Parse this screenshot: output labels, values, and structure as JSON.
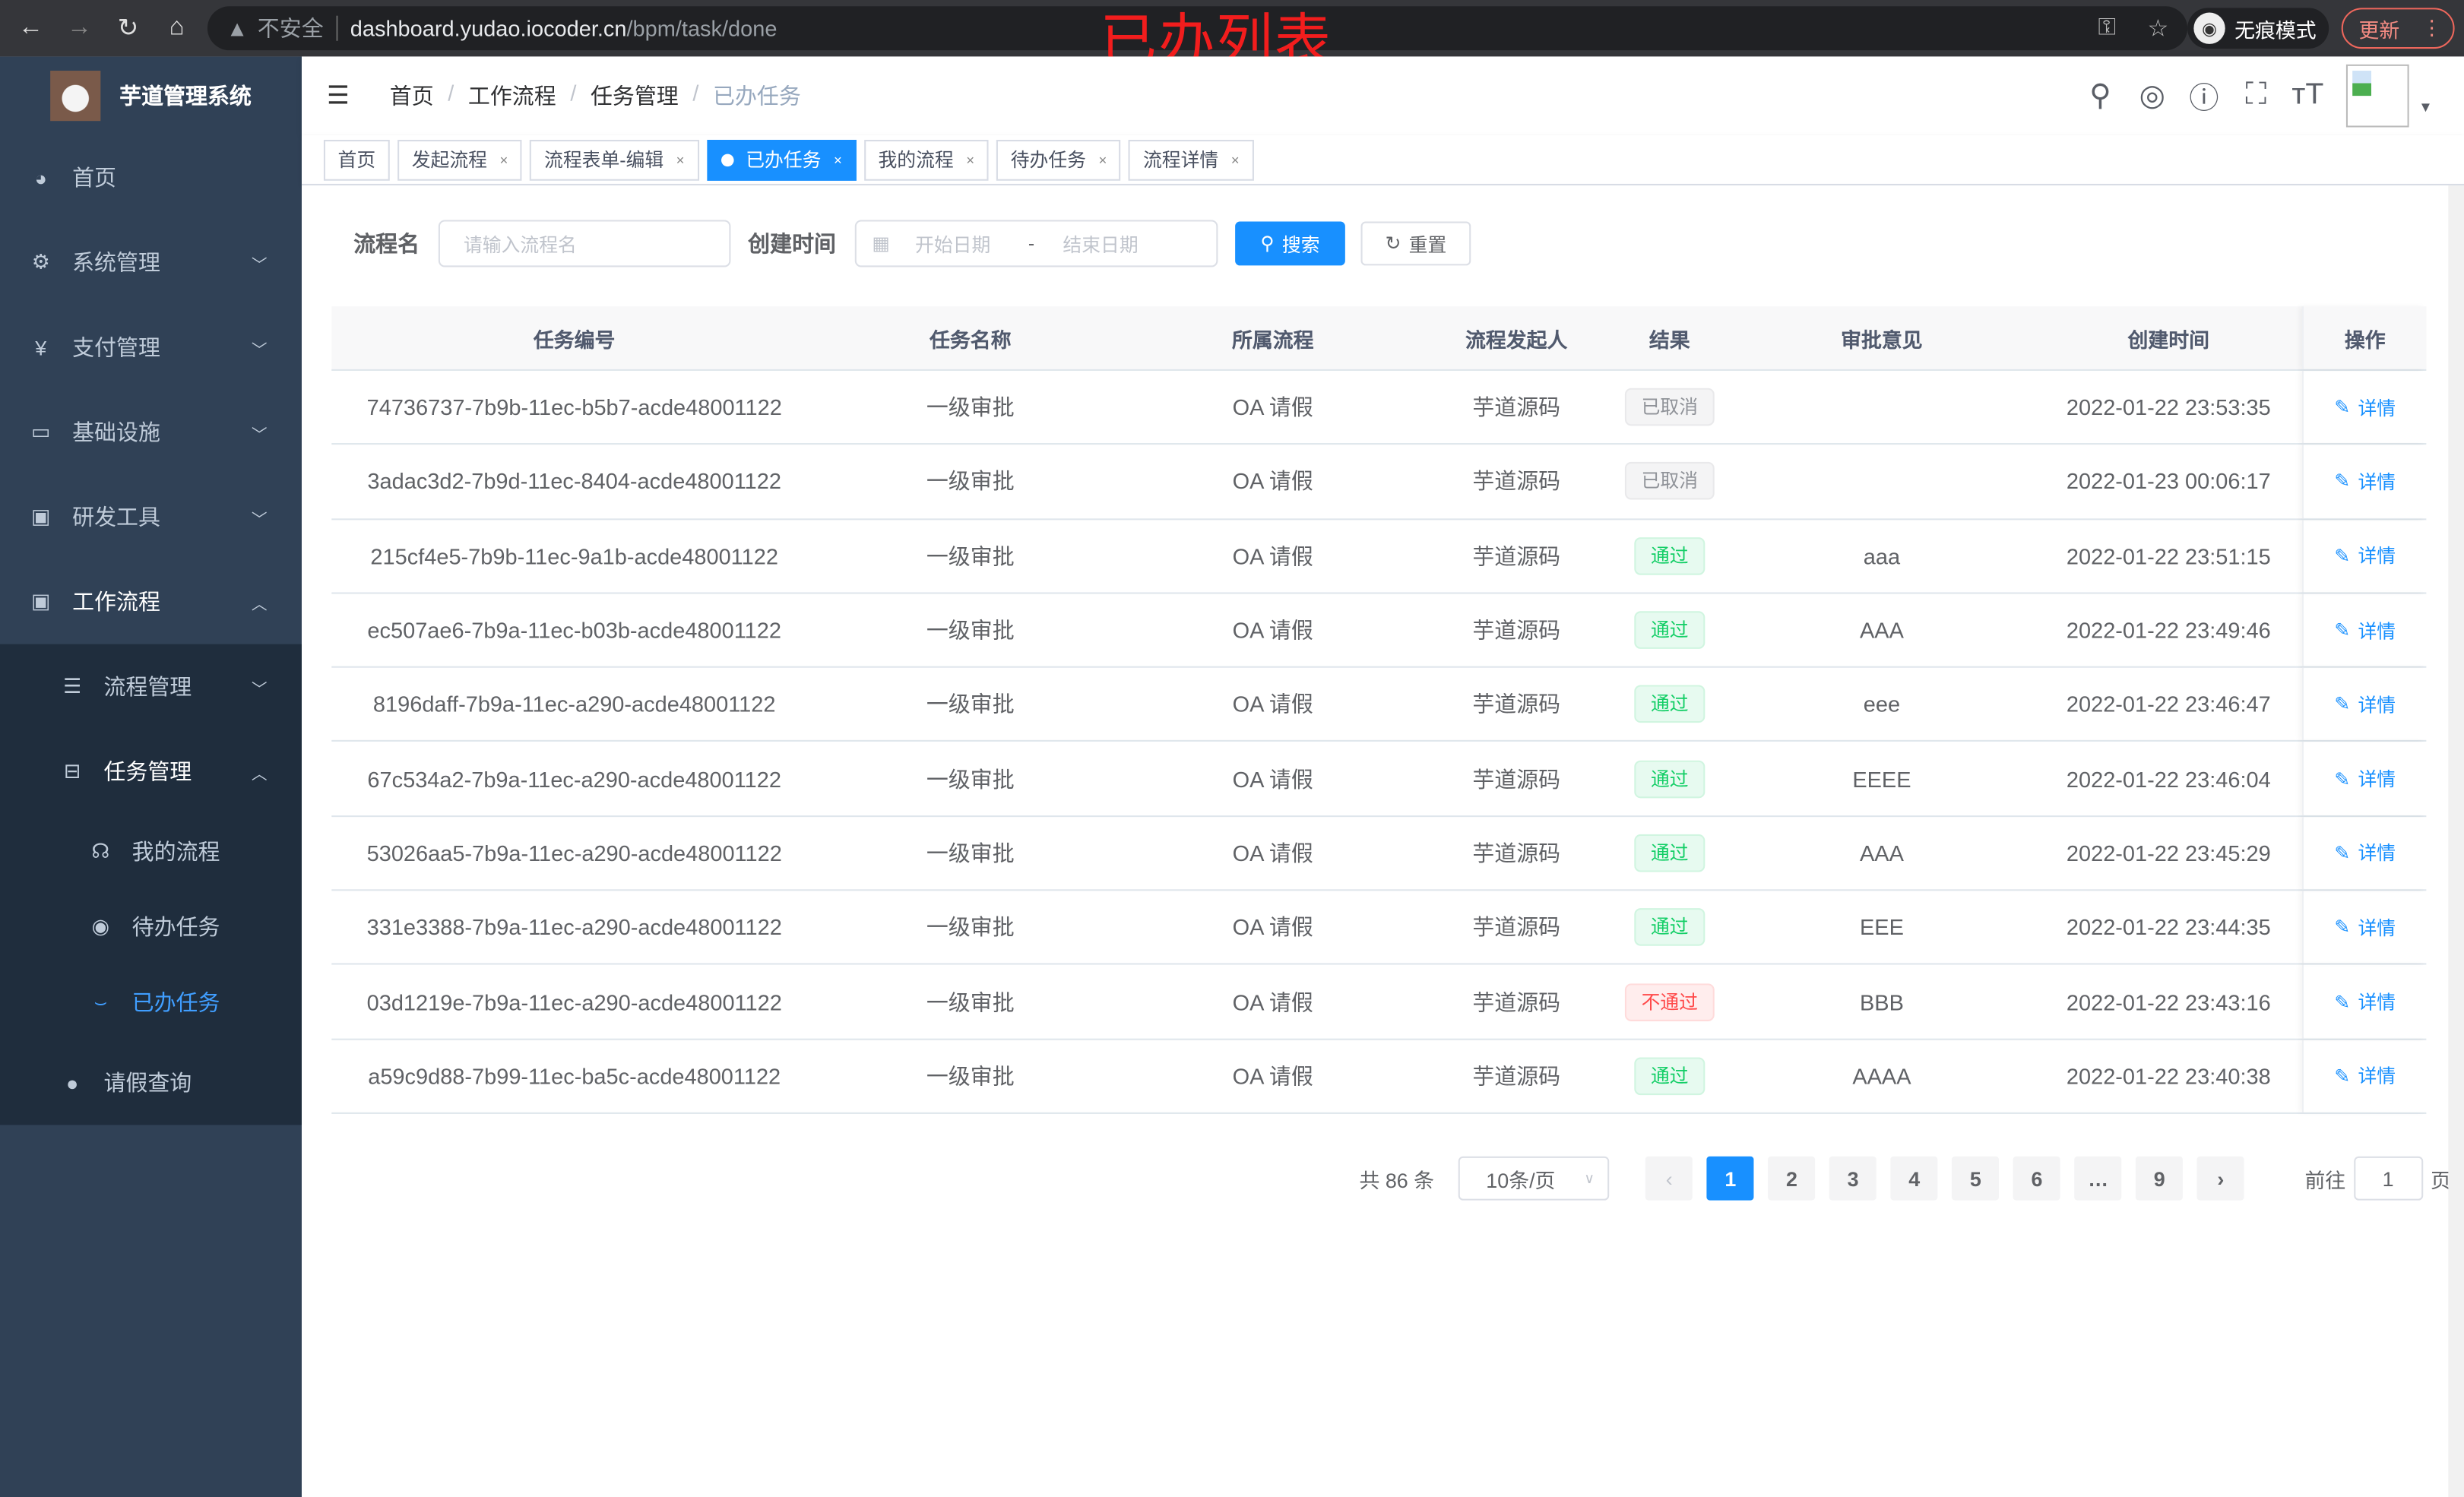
{
  "browser": {
    "security": "不安全",
    "host": "dashboard.yudao.iocoder.cn",
    "path": "/bpm/task/done",
    "incognito": "无痕模式",
    "update": "更新"
  },
  "annotation": "已办列表",
  "sidebar": {
    "title": "芋道管理系统",
    "items": [
      {
        "label": "首页",
        "icon": "dashboard-icon"
      },
      {
        "label": "系统管理",
        "icon": "gear-icon"
      },
      {
        "label": "支付管理",
        "icon": "yen-icon"
      },
      {
        "label": "基础设施",
        "icon": "monitor-icon"
      },
      {
        "label": "研发工具",
        "icon": "toolbox-icon"
      },
      {
        "label": "工作流程",
        "icon": "toolbox-icon"
      }
    ],
    "sub": [
      {
        "label": "流程管理"
      },
      {
        "label": "任务管理"
      }
    ],
    "sub2": [
      {
        "label": "我的流程"
      },
      {
        "label": "待办任务"
      },
      {
        "label": "已办任务"
      }
    ],
    "leave": "请假查询"
  },
  "breadcrumb": [
    "首页",
    "工作流程",
    "任务管理",
    "已办任务"
  ],
  "tags": [
    "首页",
    "发起流程",
    "流程表单-编辑",
    "已办任务",
    "我的流程",
    "待办任务",
    "流程详情"
  ],
  "form": {
    "name_label": "流程名",
    "name_placeholder": "请输入流程名",
    "time_label": "创建时间",
    "start_placeholder": "开始日期",
    "sep": "-",
    "end_placeholder": "结束日期",
    "search": "搜索",
    "reset": "重置"
  },
  "table": {
    "headers": [
      "任务编号",
      "任务名称",
      "所属流程",
      "流程发起人",
      "结果",
      "审批意见",
      "创建时间",
      "操作"
    ],
    "action": "详情",
    "rows": [
      {
        "id": "74736737-7b9b-11ec-b5b7-acde48001122",
        "name": "一级审批",
        "process": "OA 请假",
        "starter": "芋道源码",
        "result": "已取消",
        "status": "cancel",
        "comment": "",
        "time": "2022-01-22 23:53:35"
      },
      {
        "id": "3adac3d2-7b9d-11ec-8404-acde48001122",
        "name": "一级审批",
        "process": "OA 请假",
        "starter": "芋道源码",
        "result": "已取消",
        "status": "cancel",
        "comment": "",
        "time": "2022-01-23 00:06:17"
      },
      {
        "id": "215cf4e5-7b9b-11ec-9a1b-acde48001122",
        "name": "一级审批",
        "process": "OA 请假",
        "starter": "芋道源码",
        "result": "通过",
        "status": "pass",
        "comment": "aaa",
        "time": "2022-01-22 23:51:15"
      },
      {
        "id": "ec507ae6-7b9a-11ec-b03b-acde48001122",
        "name": "一级审批",
        "process": "OA 请假",
        "starter": "芋道源码",
        "result": "通过",
        "status": "pass",
        "comment": "AAA",
        "time": "2022-01-22 23:49:46"
      },
      {
        "id": "8196daff-7b9a-11ec-a290-acde48001122",
        "name": "一级审批",
        "process": "OA 请假",
        "starter": "芋道源码",
        "result": "通过",
        "status": "pass",
        "comment": "eee",
        "time": "2022-01-22 23:46:47"
      },
      {
        "id": "67c534a2-7b9a-11ec-a290-acde48001122",
        "name": "一级审批",
        "process": "OA 请假",
        "starter": "芋道源码",
        "result": "通过",
        "status": "pass",
        "comment": "EEEE",
        "time": "2022-01-22 23:46:04"
      },
      {
        "id": "53026aa5-7b9a-11ec-a290-acde48001122",
        "name": "一级审批",
        "process": "OA 请假",
        "starter": "芋道源码",
        "result": "通过",
        "status": "pass",
        "comment": "AAA",
        "time": "2022-01-22 23:45:29"
      },
      {
        "id": "331e3388-7b9a-11ec-a290-acde48001122",
        "name": "一级审批",
        "process": "OA 请假",
        "starter": "芋道源码",
        "result": "通过",
        "status": "pass",
        "comment": "EEE",
        "time": "2022-01-22 23:44:35"
      },
      {
        "id": "03d1219e-7b9a-11ec-a290-acde48001122",
        "name": "一级审批",
        "process": "OA 请假",
        "starter": "芋道源码",
        "result": "不通过",
        "status": "fail",
        "comment": "BBB",
        "time": "2022-01-22 23:43:16"
      },
      {
        "id": "a59c9d88-7b99-11ec-ba5c-acde48001122",
        "name": "一级审批",
        "process": "OA 请假",
        "starter": "芋道源码",
        "result": "通过",
        "status": "pass",
        "comment": "AAAA",
        "time": "2022-01-22 23:40:38"
      }
    ]
  },
  "pagination": {
    "total": "共 86 条",
    "page_size": "10条/页",
    "pages": [
      "1",
      "2",
      "3",
      "4",
      "5",
      "6",
      "…",
      "9"
    ],
    "current": "1",
    "goto_label": "前往",
    "goto_value": "1",
    "page_suffix": "页"
  },
  "colors": {
    "primary": "#1890ff",
    "sidebar": "#304156",
    "pass": "#13ce66",
    "fail": "#ff4949"
  }
}
